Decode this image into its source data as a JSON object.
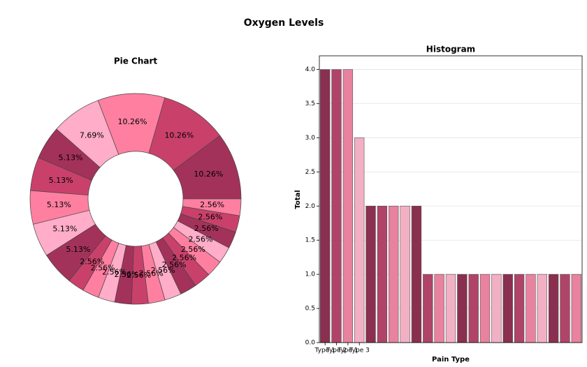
{
  "title": "Oxygen Levels",
  "chart_data": [
    {
      "type": "pie",
      "title": "Pie Chart",
      "values": [
        10.26,
        10.26,
        10.26,
        7.69,
        5.13,
        5.13,
        5.13,
        5.13,
        5.13,
        2.56,
        2.56,
        2.56,
        2.56,
        2.56,
        2.56,
        2.56,
        2.56,
        2.56,
        2.56,
        2.56,
        2.56,
        2.56,
        2.56
      ],
      "value_labels": [
        "10.26%",
        "10.26%",
        "10.26%",
        "7.69%",
        "5.13%",
        "5.13%",
        "5.13%",
        "5.13%",
        "5.13%",
        "2.56%",
        "2.56%",
        "2.56%",
        "2.56%",
        "2.56%",
        "2.56%",
        "2.56%",
        "2.56%",
        "2.56%",
        "2.56%",
        "2.56%",
        "2.56%",
        "2.56%",
        "2.56%"
      ],
      "colors": [
        "#a3325a",
        "#c9416b",
        "#ff7fa1",
        "#ffadc8"
      ]
    },
    {
      "type": "bar",
      "title": "Histogram",
      "xlabel": "Pain Type",
      "ylabel": "Total",
      "categories": [
        "Type 1",
        "Type 2",
        "Type 1",
        "Type 3",
        null,
        null,
        null,
        null,
        null,
        null,
        null,
        null,
        null,
        null,
        null,
        null,
        null,
        null,
        null,
        null,
        null,
        null,
        null
      ],
      "values": [
        4,
        4,
        4,
        3,
        2,
        2,
        2,
        2,
        2,
        1,
        1,
        1,
        1,
        1,
        1,
        1,
        1,
        1,
        1,
        1,
        1,
        1,
        1
      ],
      "colors": [
        "#8b2f50",
        "#b04468",
        "#e8829f",
        "#f2b0c5"
      ],
      "ylim": [
        0,
        4.2
      ],
      "yticks": [
        {
          "value": 0,
          "label": "0.0"
        },
        {
          "value": 0.5,
          "label": "0.5"
        },
        {
          "value": 1,
          "label": "1.0"
        },
        {
          "value": 1.5,
          "label": "1.5"
        },
        {
          "value": 2,
          "label": "2.0"
        },
        {
          "value": 2.5,
          "label": "2.5"
        },
        {
          "value": 3,
          "label": "3.0"
        },
        {
          "value": 3.5,
          "label": "3.5"
        },
        {
          "value": 4,
          "label": "4.0"
        }
      ],
      "grid": true
    }
  ]
}
